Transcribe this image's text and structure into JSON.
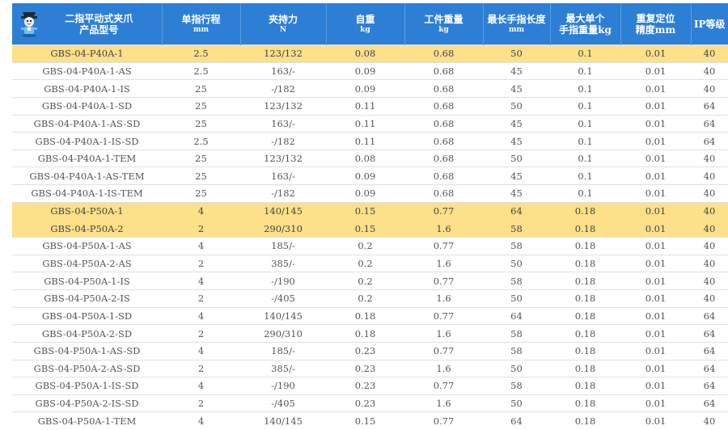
{
  "columns": [
    {
      "label": "二指平动式夹爪",
      "sub": "产品型号"
    },
    {
      "label": "单指行程",
      "sub": "mm"
    },
    {
      "label": "夹持力",
      "sub": "N"
    },
    {
      "label": "自重",
      "sub": "kg"
    },
    {
      "label": "工件重量",
      "sub": "kg"
    },
    {
      "label": "最长手指长度",
      "sub": "mm"
    },
    {
      "label": "最大单个",
      "sub": "手指重量kg"
    },
    {
      "label": "重复定位",
      "sub": "精度mm"
    },
    {
      "label": "IP等级",
      "sub": ""
    }
  ],
  "colors": {
    "header": "#2d7fd6",
    "highlight": "#fce08a"
  },
  "logo_icon": "robot-mascot-icon",
  "rows": [
    {
      "cells": [
        "GBS-04-P40A-1",
        "2.5",
        "123/132",
        "0.08",
        "0.68",
        "50",
        "0.1",
        "0.01",
        "40"
      ],
      "highlight": true
    },
    {
      "cells": [
        "GBS-04-P40A-1-AS",
        "2.5",
        "163/-",
        "0.09",
        "0.68",
        "45",
        "0.1",
        "0.01",
        "40"
      ],
      "highlight": false
    },
    {
      "cells": [
        "GBS-04-P40A-1-IS",
        "25",
        "-/182",
        "0.09",
        "0.68",
        "45",
        "0.1",
        "0.01",
        "40"
      ],
      "highlight": false
    },
    {
      "cells": [
        "GBS-04-P40A-1-SD",
        "25",
        "123/132",
        "0.11",
        "0.68",
        "50",
        "0.1",
        "0.01",
        "64"
      ],
      "highlight": false
    },
    {
      "cells": [
        "GBS-04-P40A-1-AS-SD",
        "25",
        "163/-",
        "0.11",
        "0.68",
        "45",
        "0.1",
        "0.01",
        "64"
      ],
      "highlight": false
    },
    {
      "cells": [
        "GBS-04-P40A-1-IS-SD",
        "2.5",
        "-/182",
        "0.11",
        "0.68",
        "45",
        "0.1",
        "0.01",
        "64"
      ],
      "highlight": false
    },
    {
      "cells": [
        "GBS-04-P40A-1-TEM",
        "25",
        "123/132",
        "0.08",
        "0.68",
        "50",
        "0.1",
        "0.01",
        "40"
      ],
      "highlight": false
    },
    {
      "cells": [
        "GBS-04-P40A-1-AS-TEM",
        "25",
        "163/-",
        "0.09",
        "0.68",
        "45",
        "0.1",
        "0.01",
        "40"
      ],
      "highlight": false
    },
    {
      "cells": [
        "GBS-04-P40A-1-IS-TEM",
        "25",
        "-/182",
        "0.09",
        "0.68",
        "45",
        "0.1",
        "0.01",
        "40"
      ],
      "highlight": false
    },
    {
      "cells": [
        "GBS-04-P50A-1",
        "4",
        "140/145",
        "0.15",
        "0.77",
        "64",
        "0.18",
        "0.01",
        "40"
      ],
      "highlight": true
    },
    {
      "cells": [
        "GBS-04-P50A-2",
        "2",
        "290/310",
        "0.15",
        "1.6",
        "58",
        "0.18",
        "0.01",
        "40"
      ],
      "highlight": true
    },
    {
      "cells": [
        "GBS-04-P50A-1-AS",
        "4",
        "185/-",
        "0.2",
        "0.77",
        "58",
        "0.18",
        "0.01",
        "40"
      ],
      "highlight": false
    },
    {
      "cells": [
        "GBS-04-P50A-2-AS",
        "2",
        "385/-",
        "0.2",
        "1.6",
        "50",
        "0.18",
        "0.01",
        "40"
      ],
      "highlight": false
    },
    {
      "cells": [
        "GBS-04-P50A-1-IS",
        "4",
        "-/190",
        "0.2",
        "0.77",
        "58",
        "0.18",
        "0.01",
        "40"
      ],
      "highlight": false
    },
    {
      "cells": [
        "GBS-04-P50A-2-IS",
        "2",
        "-/405",
        "0.2",
        "1.6",
        "50",
        "0.18",
        "0.01",
        "40"
      ],
      "highlight": false
    },
    {
      "cells": [
        "GBS-04-P50A-1-SD",
        "4",
        "140/145",
        "0.18",
        "0.77",
        "64",
        "0.18",
        "0.01",
        "64"
      ],
      "highlight": false
    },
    {
      "cells": [
        "GBS-04-P50A-2-SD",
        "2",
        "290/310",
        "0.18",
        "1.6",
        "58",
        "0.18",
        "0.01",
        "64"
      ],
      "highlight": false
    },
    {
      "cells": [
        "GBS-04-P50A-1-AS-SD",
        "4",
        "185/-",
        "0.23",
        "0.77",
        "58",
        "0.18",
        "0.01",
        "64"
      ],
      "highlight": false
    },
    {
      "cells": [
        "GBS-04-P50A-2-AS-SD",
        "2",
        "385/-",
        "0.23",
        "1.6",
        "50",
        "0.18",
        "0.01",
        "64"
      ],
      "highlight": false
    },
    {
      "cells": [
        "GBS-04-P50A-1-IS-SD",
        "4",
        "-/190",
        "0.23",
        "0.77",
        "58",
        "0.18",
        "0.01",
        "64"
      ],
      "highlight": false
    },
    {
      "cells": [
        "GBS-04-P50A-2-IS-SD",
        "2",
        "-/405",
        "0.23",
        "1.6",
        "50",
        "0.18",
        "0.01",
        "64"
      ],
      "highlight": false
    },
    {
      "cells": [
        "GBS-04-P50A-1-TEM",
        "4",
        "140/145",
        "0.15",
        "0.77",
        "64",
        "0.18",
        "0.01",
        "40"
      ],
      "highlight": false
    }
  ]
}
